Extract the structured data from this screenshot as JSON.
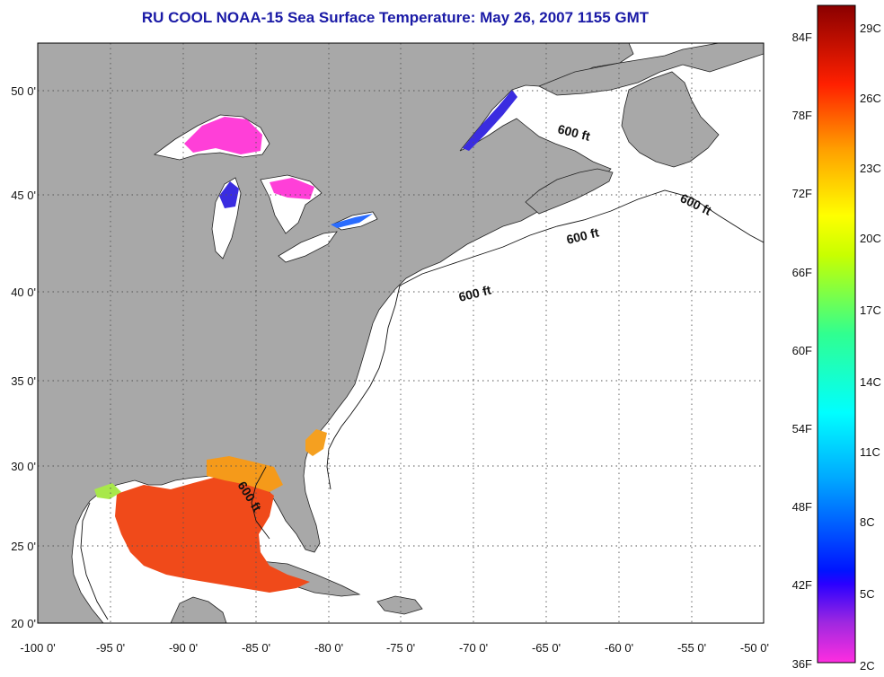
{
  "title": "RU COOL  NOAA-15  Sea Surface Temperature:  May 26, 2007 1155 GMT",
  "map": {
    "lon_ticks": [
      "-100 0'",
      "-95 0'",
      "-90 0'",
      "-85 0'",
      "-80 0'",
      "-75 0'",
      "-70 0'",
      "-65 0'",
      "-60 0'",
      "-55 0'",
      "-50 0'"
    ],
    "lat_ticks": [
      "20 0'",
      "25 0'",
      "30 0'",
      "35 0'",
      "40 0'",
      "45 0'",
      "50 0'"
    ],
    "contour_labels": [
      "600 ft",
      "600 ft",
      "600 ft",
      "600 ft",
      "600 ft"
    ],
    "colors": {
      "land": "#a8a8a8",
      "ocean": "#ffffff",
      "lakes": "#ff3fd8",
      "gulf_warm": "#f04a1a"
    }
  },
  "colorbar": {
    "fahrenheit": [
      "84F",
      "78F",
      "72F",
      "66F",
      "60F",
      "54F",
      "48F",
      "42F",
      "36F"
    ],
    "celsius": [
      "29C",
      "26C",
      "23C",
      "20C",
      "17C",
      "14C",
      "11C",
      "8C",
      "5C",
      "2C"
    ],
    "range_c": [
      2,
      30
    ]
  }
}
